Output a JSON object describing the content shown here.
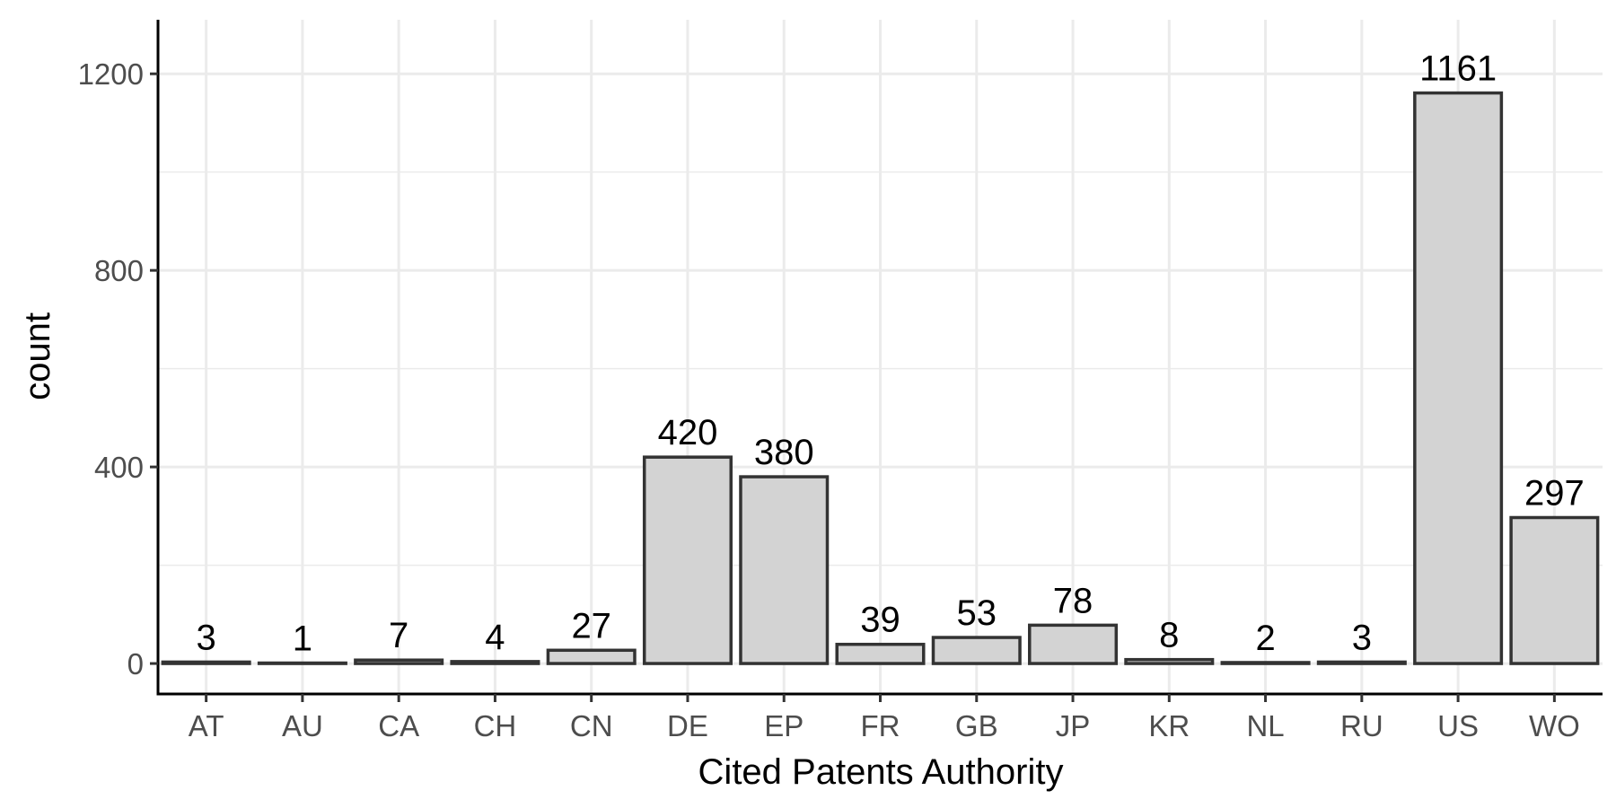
{
  "chart_data": {
    "type": "bar",
    "title": "",
    "xlabel": "Cited Patents Authority",
    "ylabel": "count",
    "categories": [
      "AT",
      "AU",
      "CA",
      "CH",
      "CN",
      "DE",
      "EP",
      "FR",
      "GB",
      "JP",
      "KR",
      "NL",
      "RU",
      "US",
      "WO"
    ],
    "values": [
      3,
      1,
      7,
      4,
      27,
      420,
      380,
      39,
      53,
      78,
      8,
      2,
      3,
      1161,
      297
    ],
    "data_labels": [
      "3",
      "1",
      "7",
      "4",
      "27",
      "420",
      "380",
      "39",
      "53",
      "78",
      "8",
      "2",
      "3",
      "1161",
      "297"
    ],
    "yticks": [
      0,
      400,
      800,
      1200
    ],
    "ytick_labels": [
      "0",
      "400",
      "800",
      "1200"
    ],
    "ylim": [
      -62,
      1310
    ],
    "grid": true,
    "legend": "none",
    "colors": {
      "bar_fill": "#d3d3d3",
      "bar_stroke": "#333333",
      "grid": "#ebebeb",
      "axis": "#000000",
      "tick_label": "#4d4d4d",
      "text": "#000000"
    }
  }
}
